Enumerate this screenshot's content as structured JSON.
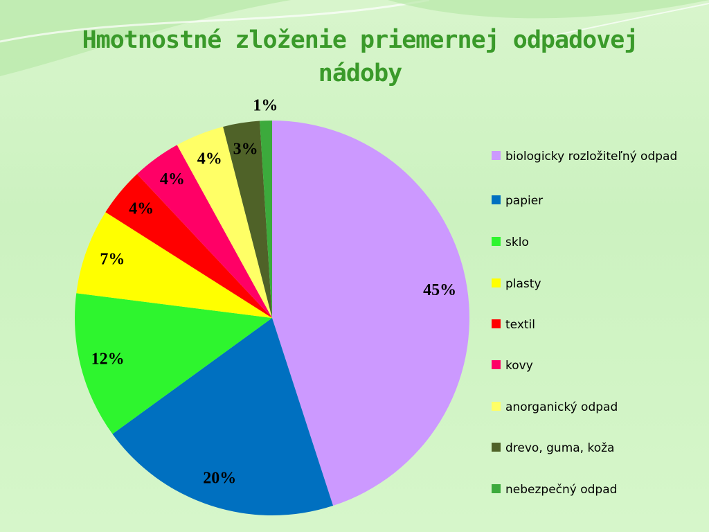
{
  "chart_data": {
    "type": "pie",
    "title": "Hmotnostné zloženie priemernej odpadovej nádoby",
    "categories": [
      "biologicky rozložiteľný odpad",
      "papier",
      "sklo",
      "plasty",
      "textil",
      "kovy",
      "anorganický odpad",
      "drevo, guma, koža",
      "nebezpečný odpad"
    ],
    "values": [
      45,
      20,
      12,
      7,
      4,
      4,
      4,
      3,
      1
    ],
    "value_labels": [
      "45%",
      "20%",
      "12%",
      "7%",
      "4%",
      "4%",
      "4%",
      "3%",
      "1%"
    ],
    "colors": [
      "#cc99ff",
      "#0070c0",
      "#2ef52e",
      "#ffff00",
      "#ff0000",
      "#ff0066",
      "#ffff66",
      "#4f6228",
      "#3caa3c"
    ],
    "legend": "right"
  }
}
